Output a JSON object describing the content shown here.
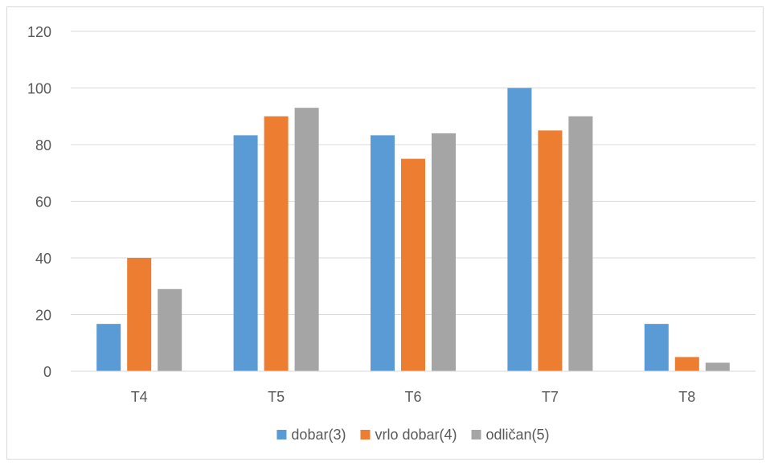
{
  "chart_data": {
    "type": "bar",
    "title": "",
    "xlabel": "",
    "ylabel": "",
    "categories": [
      "T4",
      "T5",
      "T6",
      "T7",
      "T8"
    ],
    "series": [
      {
        "name": "dobar(3)",
        "color": "#5b9bd5",
        "values": [
          16.7,
          83.3,
          83.3,
          100,
          16.7
        ]
      },
      {
        "name": "vrlo dobar(4)",
        "color": "#ed7d31",
        "values": [
          40,
          90,
          75,
          85,
          5
        ]
      },
      {
        "name": "odličan(5)",
        "color": "#a5a5a5",
        "values": [
          29,
          93,
          84,
          90,
          3
        ]
      }
    ],
    "ylim": [
      0,
      120
    ],
    "yticks": [
      0,
      20,
      40,
      60,
      80,
      100,
      120
    ],
    "grid": true,
    "legend_position": "bottom"
  }
}
